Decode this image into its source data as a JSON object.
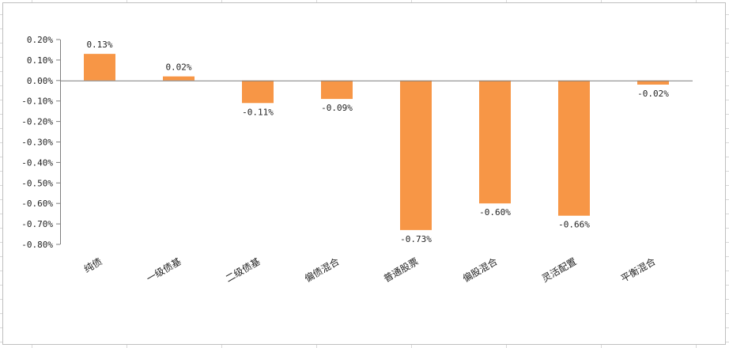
{
  "chart_data": {
    "type": "bar",
    "title": "",
    "xlabel": "",
    "ylabel": "",
    "categories": [
      "纯债",
      "一级债基",
      "二级债基",
      "偏债混合",
      "普通股票",
      "偏股混合",
      "灵活配置",
      "平衡混合"
    ],
    "values": [
      0.13,
      0.02,
      -0.11,
      -0.09,
      -0.73,
      -0.6,
      -0.66,
      -0.02
    ],
    "value_labels": [
      "0.13%",
      "0.02%",
      "-0.11%",
      "-0.09%",
      "-0.73%",
      "-0.60%",
      "-0.66%",
      "-0.02%"
    ],
    "ylim": [
      -0.8,
      0.2
    ],
    "yticks": [
      0.2,
      0.1,
      0.0,
      -0.1,
      -0.2,
      -0.3,
      -0.4,
      -0.5,
      -0.6,
      -0.7,
      -0.8
    ],
    "ytick_labels": [
      "0.20%",
      "0.10%",
      "0.00%",
      "-0.10%",
      "-0.20%",
      "-0.30%",
      "-0.40%",
      "-0.50%",
      "-0.60%",
      "-0.70%",
      "-0.80%"
    ],
    "bar_color": "#F79646",
    "grid": false,
    "legend": "none"
  },
  "colors": {
    "sheet_gridline": "#d9d9d9",
    "chart_border": "#bfbfbf",
    "axis": "#7f7f7f"
  }
}
